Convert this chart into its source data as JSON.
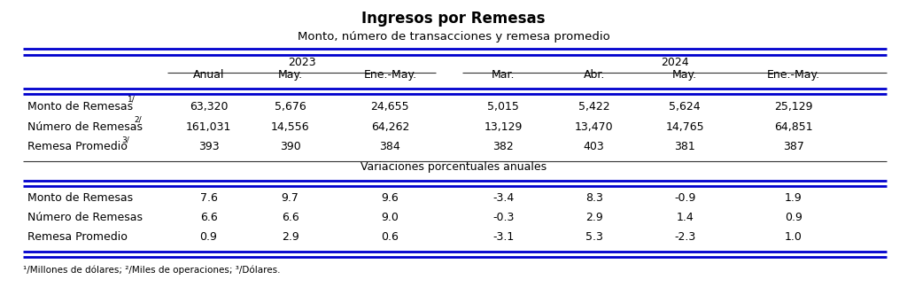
{
  "title": "Ingresos por Remesas",
  "subtitle": "Monto, número de transacciones y remesa promedio",
  "bg_color": "#ffffff",
  "line_color": "#0000cd",
  "text_color": "#000000",
  "title_fontsize": 12,
  "subtitle_fontsize": 9.5,
  "header_fontsize": 9,
  "data_fontsize": 9,
  "footnote_fontsize": 7.5,
  "col_headers_row1": [
    "",
    "2023",
    "",
    "",
    "2024",
    "",
    "",
    ""
  ],
  "col_headers_row2": [
    "",
    "Anual",
    "May.",
    "Ene.-May.",
    "Mar.",
    "Abr.",
    "May.",
    "Ene.-May."
  ],
  "section1_rows": [
    [
      "Monto de Remesas",
      "1/",
      "63,320",
      "5,676",
      "24,655",
      "5,015",
      "5,422",
      "5,624",
      "25,129"
    ],
    [
      "Número de Remesas",
      "2/",
      "161,031",
      "14,556",
      "64,262",
      "13,129",
      "13,470",
      "14,765",
      "64,851"
    ],
    [
      "Remesa Promedio",
      "3/",
      "393",
      "390",
      "384",
      "382",
      "403",
      "381",
      "387"
    ]
  ],
  "section2_header": "Variaciones porcentuales anuales",
  "section2_rows": [
    [
      "Monto de Remesas",
      "",
      "7.6",
      "9.7",
      "9.6",
      "-3.4",
      "8.3",
      "-0.9",
      "1.9"
    ],
    [
      "Número de Remesas",
      "",
      "6.6",
      "6.6",
      "9.0",
      "-0.3",
      "2.9",
      "1.4",
      "0.9"
    ],
    [
      "Remesa Promedio",
      "",
      "0.9",
      "2.9",
      "0.6",
      "-3.1",
      "5.3",
      "-2.3",
      "1.0"
    ]
  ],
  "footnote": "¹/Millones de dólares; ²/Miles de operaciones; ³/Dólares."
}
